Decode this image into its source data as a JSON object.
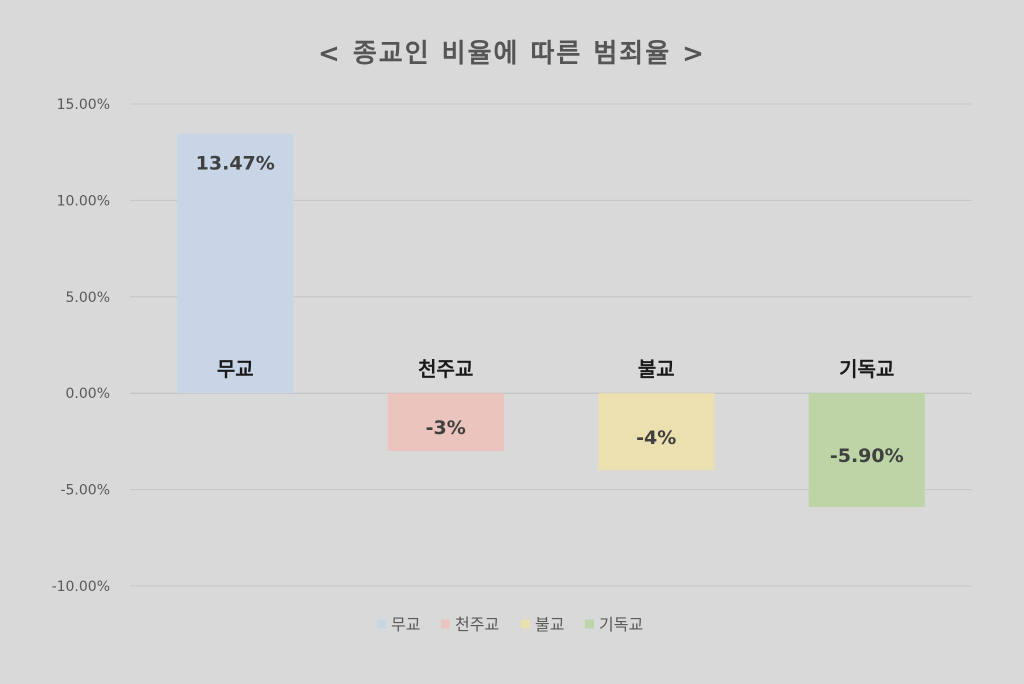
{
  "chart_data": {
    "type": "bar",
    "title": "< 종교인 비율에 따른 범죄율 >",
    "categories": [
      "무교",
      "천주교",
      "불교",
      "기독교"
    ],
    "series": [
      {
        "values": [
          13.47,
          -3,
          -4,
          -5.9
        ],
        "data_labels": [
          "13.47%",
          "-3%",
          "-4%",
          "-5.90%"
        ],
        "colors": [
          "#c7d5e6",
          "#ebc4bd",
          "#ede0b0",
          "#bdd4a6"
        ]
      }
    ],
    "ylim": [
      -10,
      15
    ],
    "yticks": [
      15,
      10,
      5,
      0,
      -5,
      -10
    ],
    "ytick_labels": [
      "15.00%",
      "10.00%",
      "5.00%",
      "0.00%",
      "-5.00%",
      "-10.00%"
    ],
    "grid": true,
    "legend": {
      "position": "bottom",
      "entries": [
        "무교",
        "천주교",
        "불교",
        "기독교"
      ]
    },
    "category_label_position": "above-zero-line"
  }
}
